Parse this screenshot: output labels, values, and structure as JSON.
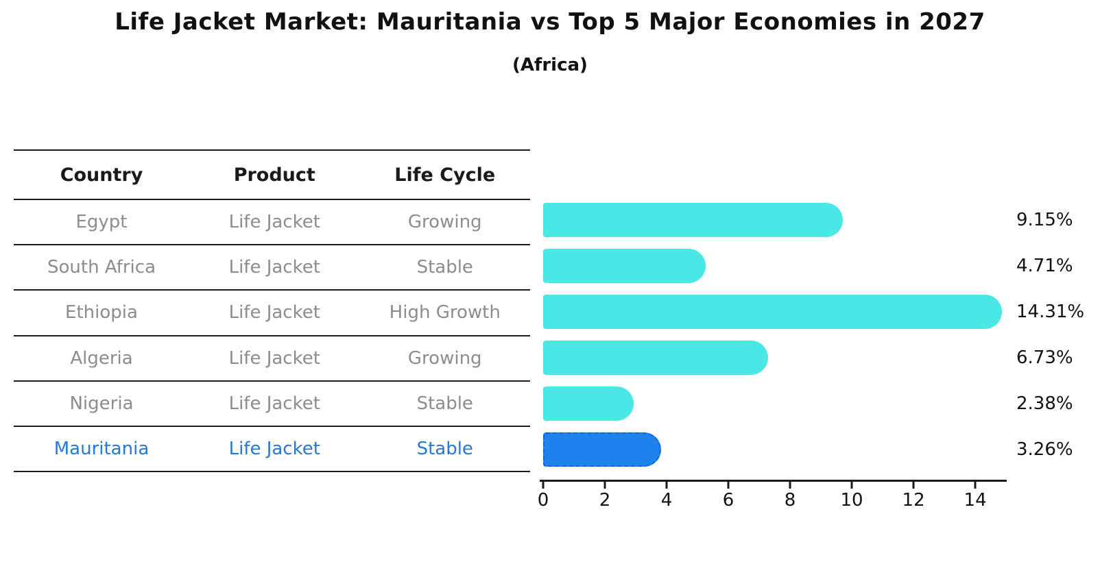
{
  "title": "Life Jacket Market: Mauritania vs Top 5 Major Economies in 2027",
  "subtitle": "(Africa)",
  "table": {
    "columns": [
      "Country",
      "Product",
      "Life Cycle"
    ],
    "rows": [
      {
        "country": "Egypt",
        "product": "Life Jacket",
        "life_cycle": "Growing",
        "highlight": false
      },
      {
        "country": "South Africa",
        "product": "Life Jacket",
        "life_cycle": "Stable",
        "highlight": false
      },
      {
        "country": "Ethiopia",
        "product": "Life Jacket",
        "life_cycle": "High Growth",
        "highlight": false
      },
      {
        "country": "Algeria",
        "product": "Life Jacket",
        "life_cycle": "Growing",
        "highlight": false
      },
      {
        "country": "Nigeria",
        "product": "Life Jacket",
        "life_cycle": "Stable",
        "highlight": false
      },
      {
        "country": "Mauritania",
        "product": "Life Jacket",
        "life_cycle": "Stable",
        "highlight": true
      }
    ]
  },
  "chart_data": {
    "type": "bar",
    "orientation": "horizontal",
    "title": "Life Jacket Market: Mauritania vs Top 5 Major Economies in 2027",
    "subtitle": "(Africa)",
    "categories": [
      "Egypt",
      "South Africa",
      "Ethiopia",
      "Algeria",
      "Nigeria",
      "Mauritania"
    ],
    "values": [
      9.15,
      4.71,
      14.31,
      6.73,
      2.38,
      3.26
    ],
    "value_labels": [
      "9.15%",
      "4.71%",
      "14.31%",
      "6.73%",
      "2.38%",
      "3.26%"
    ],
    "highlight_index": 5,
    "xlabel": "",
    "ylabel": "",
    "xlim": [
      0,
      15.02
    ],
    "xticks": [
      0,
      2,
      4,
      6,
      8,
      10,
      12,
      14
    ],
    "grid": false,
    "legend": false
  },
  "colors": {
    "bar": "#49E8E4",
    "bar_highlight": "#1E82EC",
    "bar_highlight_border": "#1563CD",
    "highlight_text": "#2479D4",
    "text_gray": "#8C8C8C",
    "text_dark": "#1A1A1A"
  }
}
